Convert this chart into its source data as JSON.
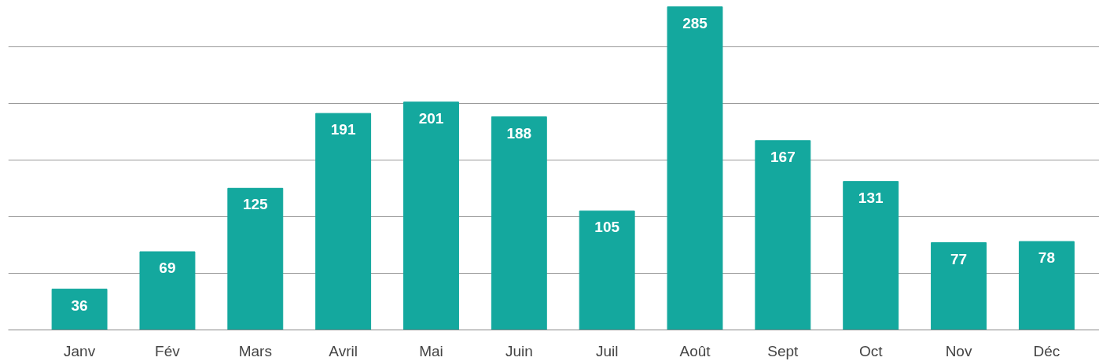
{
  "chart_data": {
    "type": "bar",
    "categories": [
      "Janv",
      "Fév",
      "Mars",
      "Avril",
      "Mai",
      "Juin",
      "Juil",
      "Août",
      "Sept",
      "Oct",
      "Nov",
      "Déc"
    ],
    "values": [
      36,
      69,
      125,
      191,
      201,
      188,
      105,
      285,
      167,
      131,
      77,
      78
    ],
    "color": "#14a89e",
    "data_labels": true,
    "yticks": [
      {
        "value": 0,
        "label": null
      },
      {
        "value": 50,
        "label": null
      },
      {
        "value": 100,
        "label": null
      },
      {
        "value": 150,
        "label": null
      },
      {
        "value": 200,
        "label": null
      },
      {
        "value": 250,
        "label": null
      }
    ],
    "grid": "y",
    "tick_labels": "x"
  }
}
